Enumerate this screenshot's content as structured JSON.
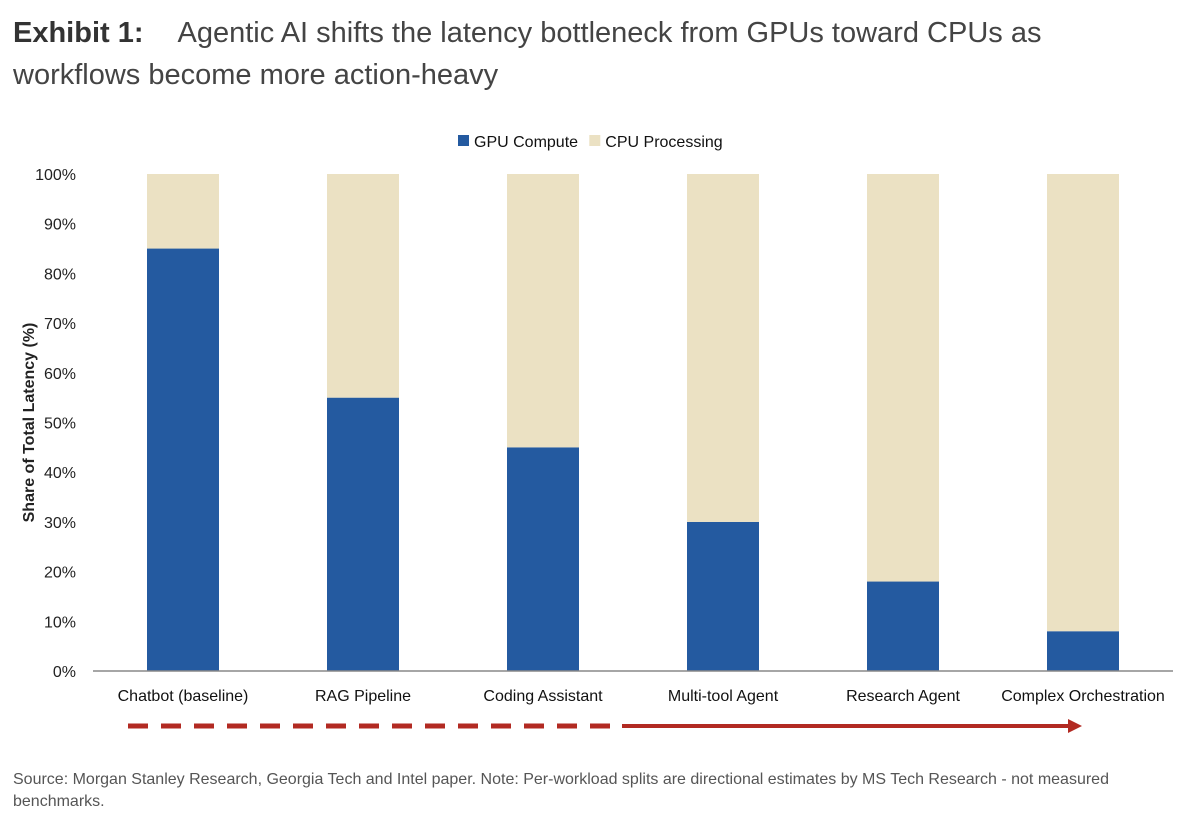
{
  "header": {
    "exhibit_label": "Exhibit 1:",
    "title": "Agentic AI shifts the latency bottleneck from GPUs toward CPUs as workflows become more action-heavy"
  },
  "chart_data": {
    "type": "bar",
    "stacked": true,
    "categories": [
      "Chatbot (baseline)",
      "RAG Pipeline",
      "Coding Assistant",
      "Multi-tool Agent",
      "Research Agent",
      "Complex Orchestration"
    ],
    "series": [
      {
        "name": "GPU Compute",
        "color": "#245aa0",
        "values": [
          85,
          55,
          45,
          30,
          18,
          8
        ]
      },
      {
        "name": "CPU Processing",
        "color": "#ebe1c3",
        "values": [
          15,
          45,
          55,
          70,
          82,
          92
        ]
      }
    ],
    "ylabel": "Share of Total Latency (%)",
    "xlabel": "",
    "ylim": [
      0,
      100
    ],
    "yticks": [
      "0%",
      "10%",
      "20%",
      "30%",
      "40%",
      "50%",
      "60%",
      "70%",
      "80%",
      "90%",
      "100%"
    ],
    "grid": false,
    "legend_position": "top-center",
    "arrow_color": "#b22a22"
  },
  "footer": {
    "source": "Source: Morgan Stanley Research, Georgia Tech and Intel paper. Note: Per-workload splits are directional estimates by MS Tech Research - not measured benchmarks."
  }
}
